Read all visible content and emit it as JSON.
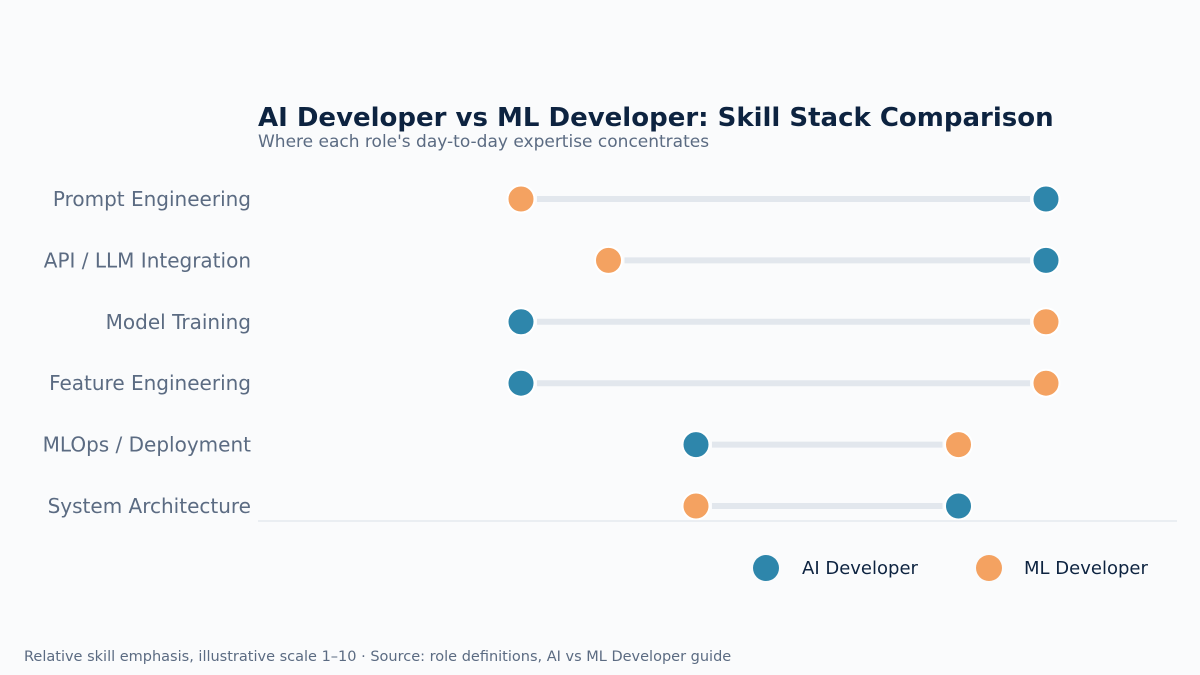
{
  "chart_data": {
    "type": "dumbbell",
    "title": "AI Developer vs ML Developer: Skill Stack Comparison",
    "subtitle": "Where each role's day-to-day expertise concentrates",
    "categories": [
      "Prompt Engineering",
      "API / LLM Integration",
      "Model Training",
      "Feature Engineering",
      "MLOps / Deployment",
      "System Architecture"
    ],
    "series": [
      {
        "name": "AI Developer",
        "color": "#2e86ab",
        "values": [
          9,
          9,
          3,
          3,
          5,
          8
        ]
      },
      {
        "name": "ML Developer",
        "color": "#f4a261",
        "values": [
          3,
          4,
          9,
          9,
          8,
          5
        ]
      }
    ],
    "xlim": [
      0,
      10
    ],
    "grid": false,
    "legend_position": "bottom-right",
    "footer": "Relative skill emphasis, illustrative scale 1–10  ·  Source: role definitions, AI vs ML Developer guide"
  },
  "colors": {
    "connector": "#e2e7ed",
    "axis_line": "#e5e9ee",
    "title": "#0d2340",
    "muted_text": "#5b6b82",
    "background": "#fafbfc"
  }
}
